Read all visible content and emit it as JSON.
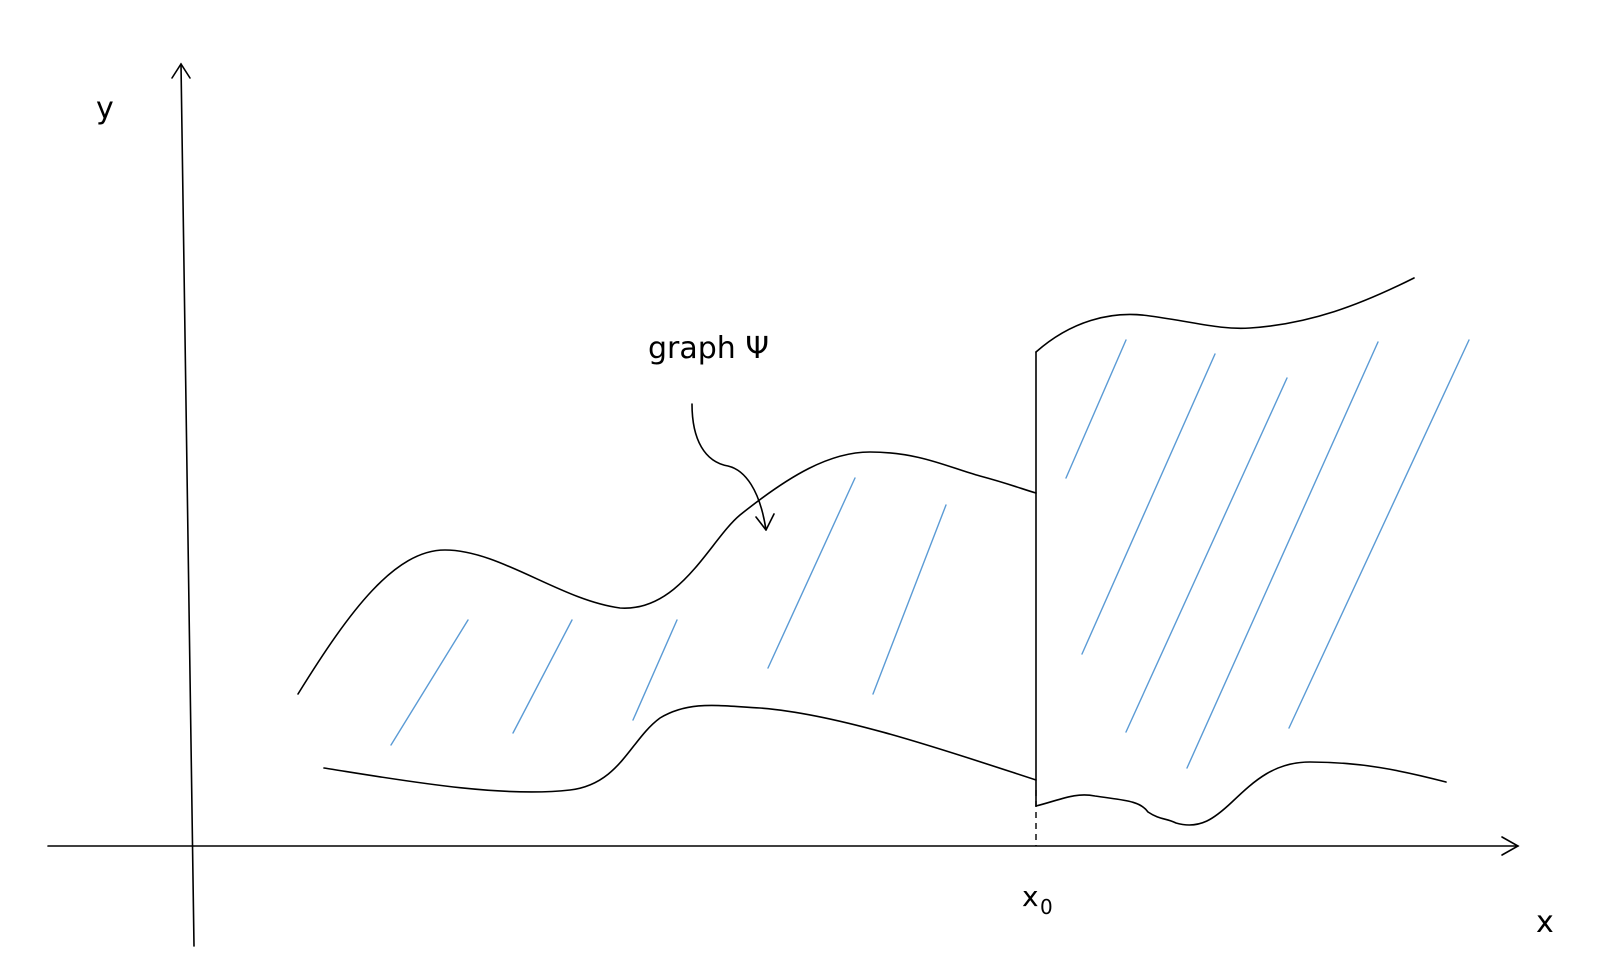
{
  "labels": {
    "y_axis": "y",
    "x_axis": "x",
    "x0_base": "x",
    "x0_sub": "0",
    "graph_label": "graph Ψ"
  },
  "colors": {
    "ink": "#000000",
    "hatch": "#5b9bd5",
    "background": "#ffffff"
  }
}
